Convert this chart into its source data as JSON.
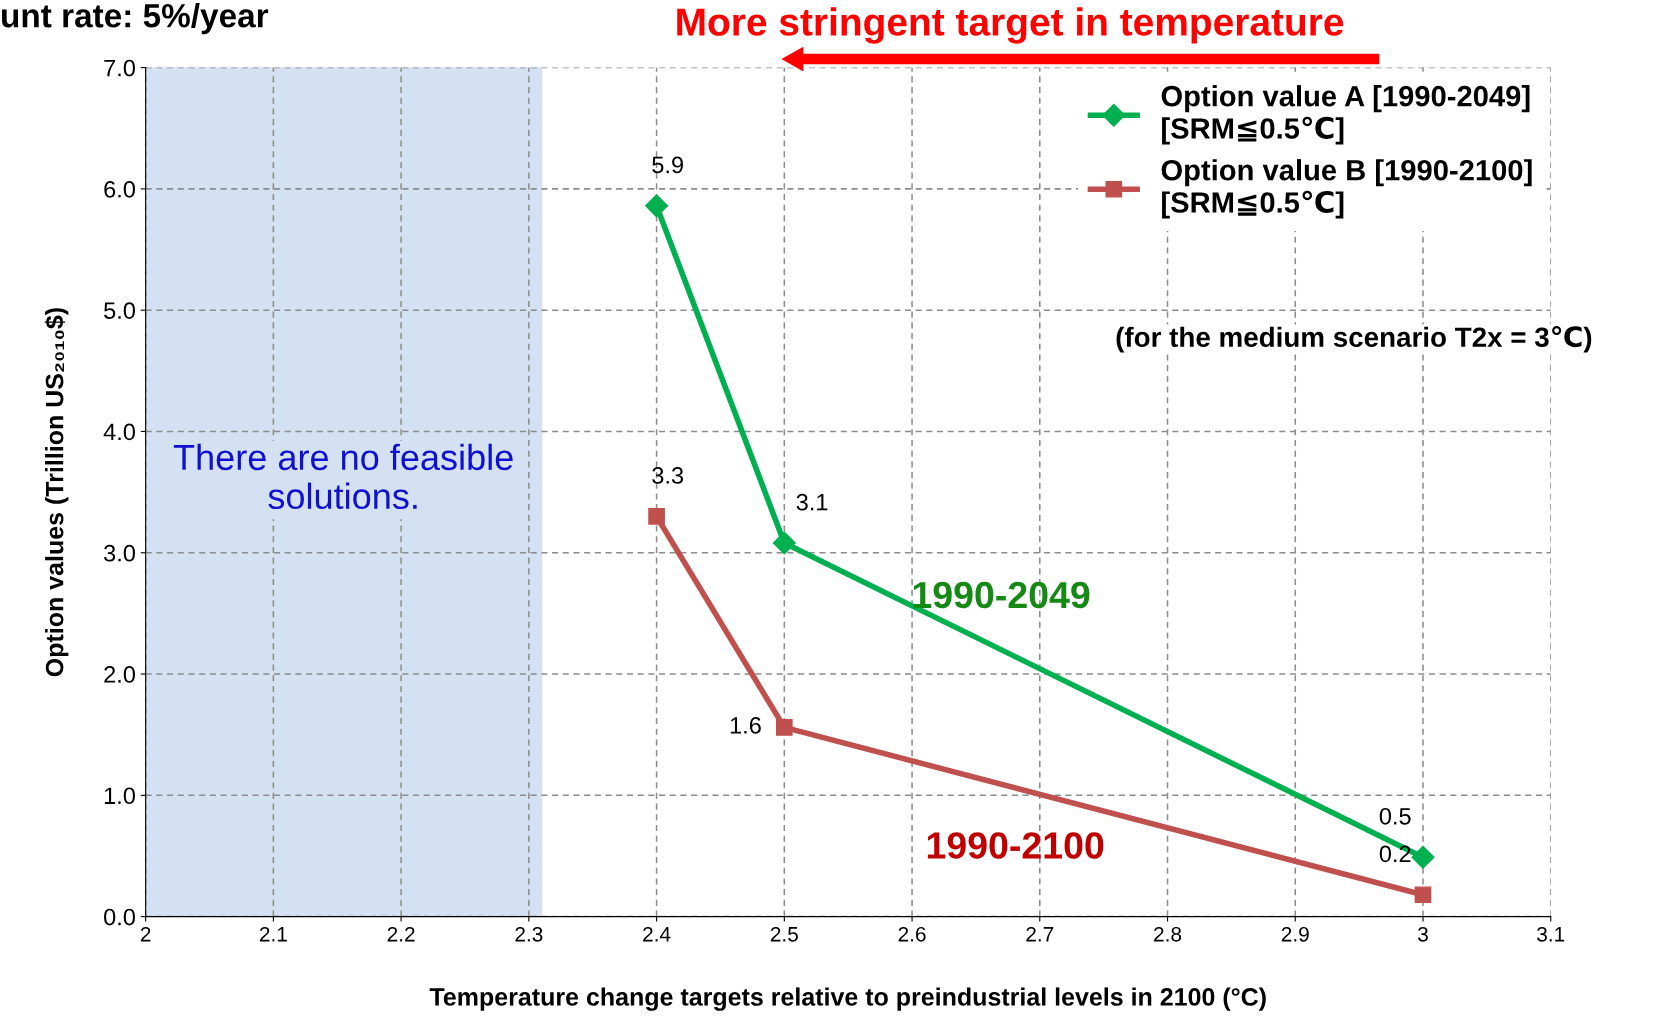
{
  "chart_data": {
    "type": "line",
    "title": "unt rate: 5%/year",
    "xlabel": "Temperature change targets relative to preindustrial levels in 2100 (°C)",
    "ylabel": "Option values (Trillion US₂₀₁₀$)",
    "x": [
      2.4,
      2.5,
      3.0
    ],
    "series": [
      {
        "name": "Option value A [1990-2049]\n[SRM≦0.5℃]",
        "color": "#00b050",
        "marker": "diamond",
        "values": [
          5.86,
          3.08,
          0.49
        ],
        "value_labels": [
          "5.9",
          "3.1",
          "0.5"
        ]
      },
      {
        "name": "Option value B [1990-2100]\n[SRM≦0.5℃]",
        "color": "#c0504d",
        "marker": "square",
        "values": [
          3.3,
          1.56,
          0.18
        ],
        "value_labels": [
          "3.3",
          "1.6",
          "0.2"
        ]
      }
    ],
    "xlim": [
      2,
      3.1
    ],
    "xticks": [
      2,
      2.1,
      2.2,
      2.3,
      2.4,
      2.5,
      2.6,
      2.7,
      2.8,
      2.9,
      3,
      3.1
    ],
    "ylim": [
      0,
      7
    ],
    "yticks": [
      {
        "value": 0,
        "label": "0.0"
      },
      {
        "value": 1,
        "label": "1.0"
      },
      {
        "value": 2,
        "label": "2.0"
      },
      {
        "value": 3,
        "label": "3.0"
      },
      {
        "value": 4,
        "label": "4.0"
      },
      {
        "value": 5,
        "label": "5.0"
      },
      {
        "value": 6,
        "label": "6.0"
      },
      {
        "value": 7,
        "label": "7.0"
      }
    ],
    "bands": [
      {
        "axis": "x",
        "from": 2,
        "to": 2.31,
        "label": "There are no feasible\nsolutions.",
        "color": "#d3e1f3"
      }
    ],
    "annotations": [
      "1990-2049",
      "1990-2100",
      "(for the medium scenario T2x = 3℃)",
      "More stringent target in temperature"
    ],
    "grid": true,
    "line_style": "solid",
    "legend": "top right"
  }
}
